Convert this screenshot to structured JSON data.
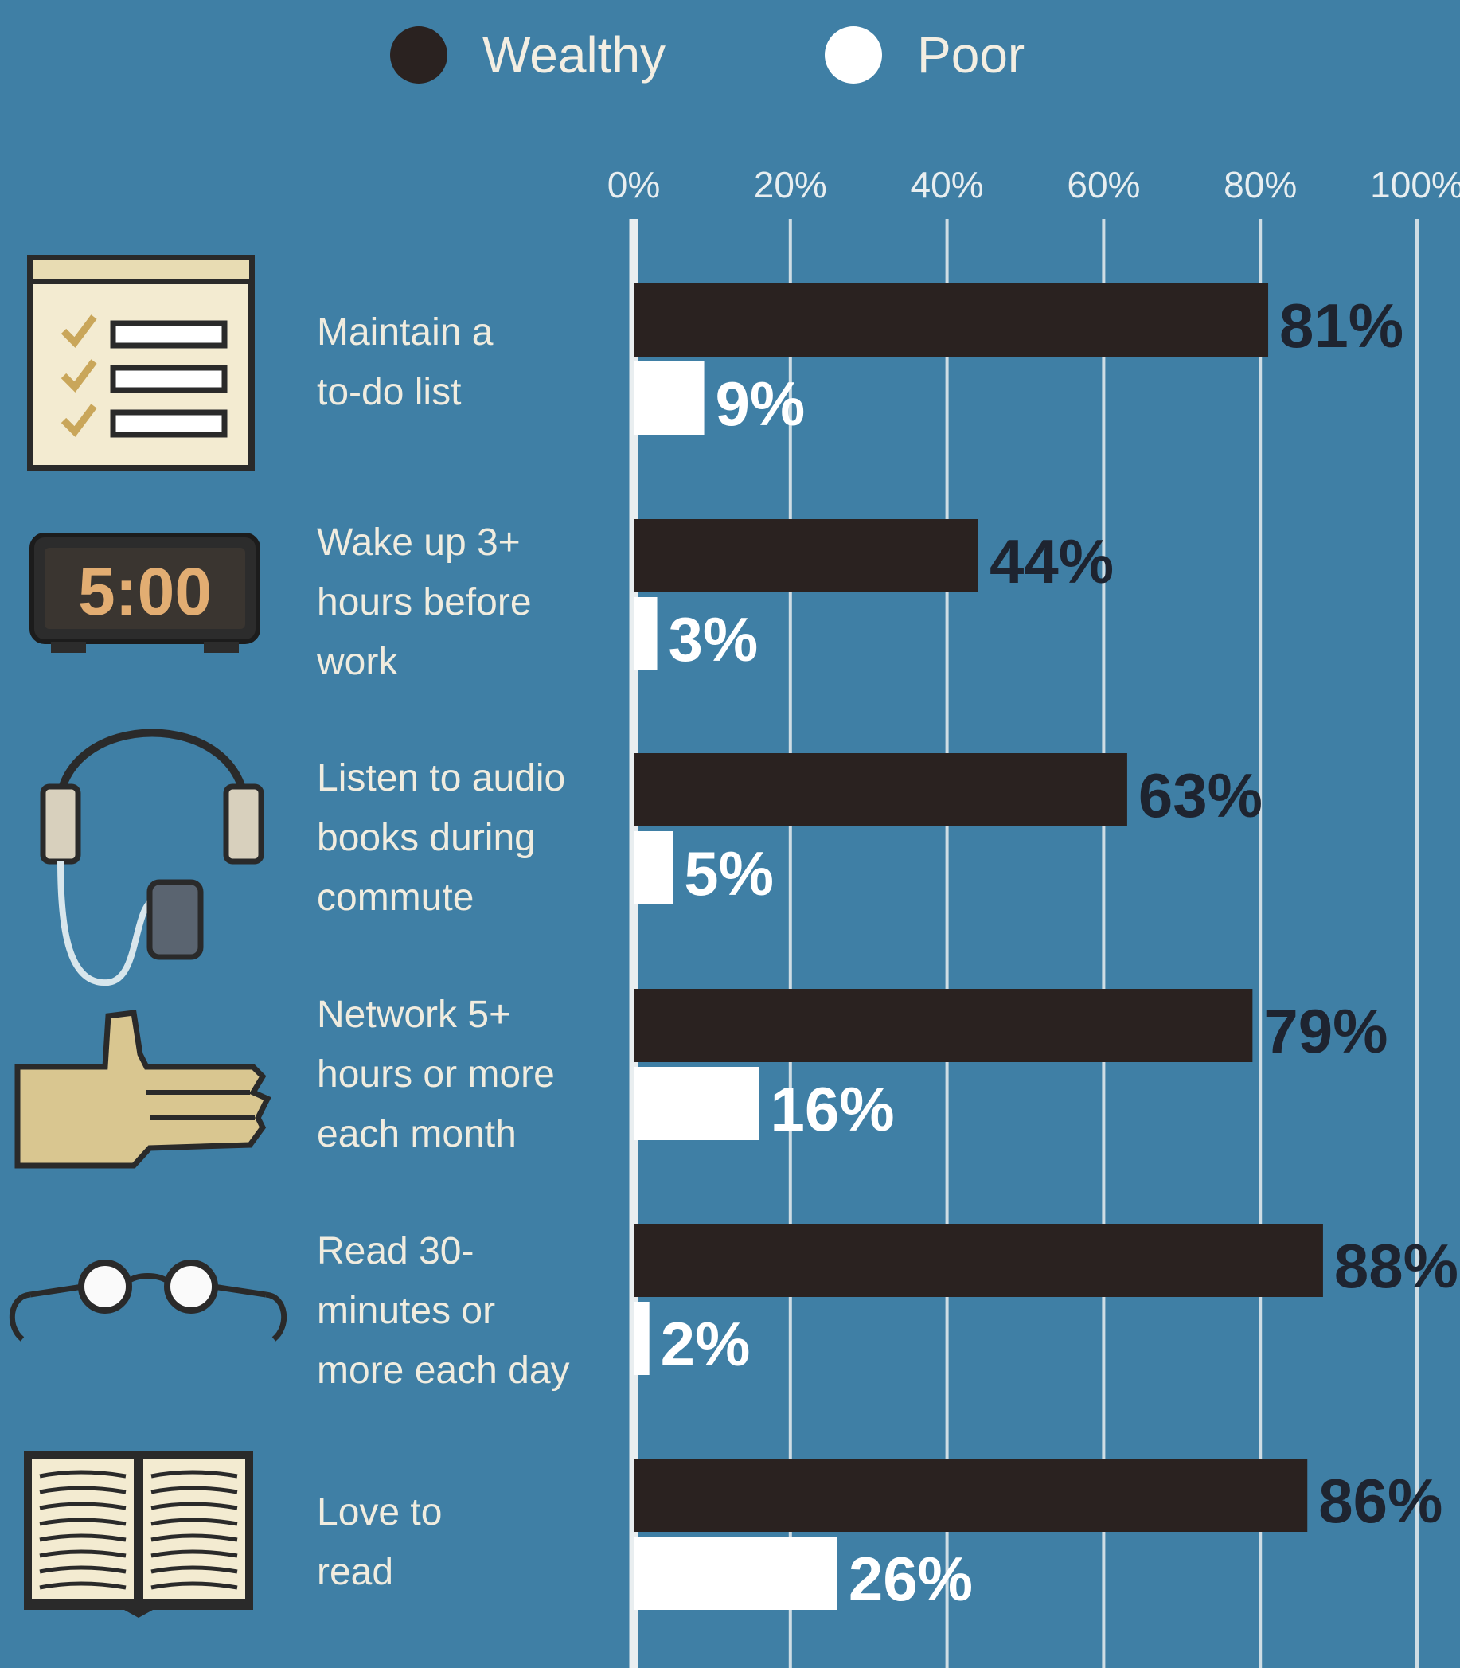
{
  "legend": {
    "wealthy": "Wealthy",
    "poor": "Poor"
  },
  "colors": {
    "background": "#3f7fa5",
    "wealthy_bar": "#2a2220",
    "poor_bar": "#ffffff",
    "wealthy_value_text": "#1e2430",
    "poor_value_text": "#ffffff",
    "label_text": "#f0ecdf",
    "gridline": "#e9eef0",
    "icon_cream": "#f3ebd1",
    "icon_tan": "#d9c690",
    "icon_dark": "#2a2a2a",
    "clock_digits": "#e2ad72"
  },
  "rows": [
    {
      "label": "Maintain a\nto-do list",
      "icon": "checklist-icon"
    },
    {
      "label": "Wake up 3+\nhours before\nwork",
      "icon": "alarm-clock-icon",
      "clock_text": "5:00"
    },
    {
      "label": "Listen to audio\nbooks during\ncommute",
      "icon": "headphones-icon"
    },
    {
      "label": "Network 5+\nhours or more\neach month",
      "icon": "handshake-hand-icon"
    },
    {
      "label": "Read 30-\nminutes or\nmore each day",
      "icon": "glasses-icon"
    },
    {
      "label": "Love to\nread",
      "icon": "open-book-icon"
    }
  ],
  "chart_data": {
    "type": "bar",
    "orientation": "horizontal",
    "categories": [
      "Maintain a to-do list",
      "Wake up 3+ hours before work",
      "Listen to audio books during commute",
      "Network 5+ hours or more each month",
      "Read 30-minutes or more each day",
      "Love to read"
    ],
    "series": [
      {
        "name": "Wealthy",
        "values": [
          81,
          44,
          63,
          79,
          88,
          86
        ],
        "labels": [
          "81%",
          "44%",
          "63%",
          "79%",
          "88%",
          "86%"
        ]
      },
      {
        "name": "Poor",
        "values": [
          9,
          3,
          5,
          16,
          2,
          26
        ],
        "labels": [
          "9%",
          "3%",
          "5%",
          "16%",
          "2%",
          "26%"
        ]
      }
    ],
    "xlim": [
      0,
      100
    ],
    "ticks": [
      0,
      20,
      40,
      60,
      80,
      100
    ],
    "tick_labels": [
      "0%",
      "20%",
      "40%",
      "60%",
      "80%",
      "100%"
    ],
    "grid": true,
    "legend_position": "top"
  }
}
